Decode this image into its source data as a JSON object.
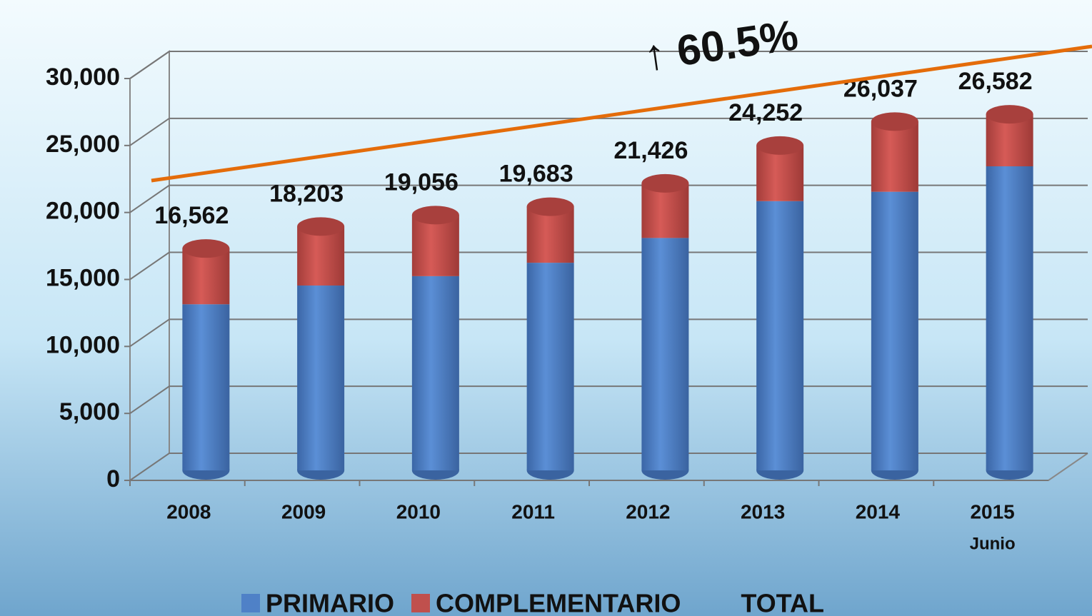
{
  "chart_data": {
    "type": "bar",
    "stacked": true,
    "categories": [
      "2008",
      "2009",
      "2010",
      "2011",
      "2012",
      "2013",
      "2014",
      "2015"
    ],
    "category_note": "Junio",
    "series": [
      {
        "name": "PRIMARIO",
        "color": "#4f81c7",
        "values": [
          12400,
          13800,
          14500,
          15500,
          17350,
          20100,
          20800,
          22700
        ]
      },
      {
        "name": "COMPLEMENTARIO",
        "color": "#c0504d",
        "values": [
          4162,
          4403,
          4556,
          4183,
          4076,
          4152,
          5237,
          3882
        ]
      },
      {
        "name": "TOTAL",
        "values": [
          16562,
          18203,
          19056,
          19683,
          21426,
          24252,
          26037,
          26582
        ],
        "value_labels": [
          "16,562",
          "18,203",
          "19,056",
          "19,683",
          "21,426",
          "24,252",
          "26,037",
          "26,582"
        ]
      }
    ],
    "annotation": "↑ 60.5%",
    "ylim": [
      0,
      30000
    ],
    "yticks": [
      0,
      {
        "value": 5000,
        "label": "5,000"
      },
      {
        "value": 10000,
        "label": "10,000"
      },
      {
        "value": 15000,
        "label": "15,000"
      },
      {
        "value": 20000,
        "label": "20,000"
      },
      {
        "value": 25000,
        "label": "25,000"
      },
      {
        "value": 30000,
        "label": "30,000"
      }
    ],
    "grid": true,
    "legend": "bottom"
  }
}
